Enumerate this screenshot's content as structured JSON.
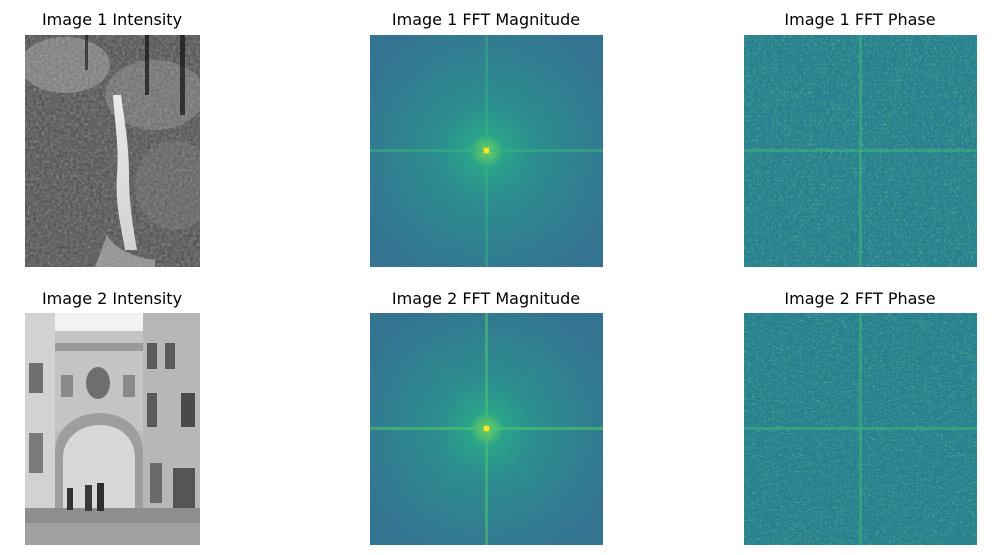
{
  "figure": {
    "rows": [
      {
        "panels": [
          {
            "title": "Image 1 Intensity",
            "kind": "intensity",
            "scene": "waterfall"
          },
          {
            "title": "Image 1 FFT Magnitude",
            "kind": "fft-magnitude"
          },
          {
            "title": "Image 1 FFT Phase",
            "kind": "fft-phase"
          }
        ]
      },
      {
        "panels": [
          {
            "title": "Image 2 Intensity",
            "kind": "intensity",
            "scene": "building-archway"
          },
          {
            "title": "Image 2 FFT Magnitude",
            "kind": "fft-magnitude"
          },
          {
            "title": "Image 2 FFT Phase",
            "kind": "fft-phase"
          }
        ]
      }
    ]
  },
  "colors": {
    "background": "#ffffff",
    "viridis_bg": "#2d6e8e",
    "viridis_mid": "#21908d",
    "viridis_bright": "#5ec962",
    "viridis_peak": "#fde725",
    "phase_bg": "#27808e"
  }
}
